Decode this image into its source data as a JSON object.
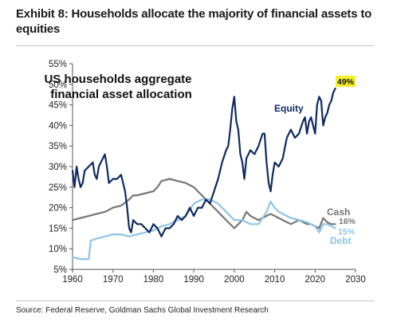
{
  "header": {
    "title_line1": "Exhibit 8: Households allocate the majority of financial assets to",
    "title_line2": "equities"
  },
  "source": "Source: Federal Reserve, Goldman Sachs Global Investment Research",
  "chart_data": {
    "type": "line",
    "title": "US households aggregate financial asset allocation",
    "title_line1": "US households aggregate",
    "title_line2": "financial asset allocation",
    "xlabel": "",
    "ylabel": "",
    "xlim": [
      1960,
      2030
    ],
    "ylim": [
      5,
      55
    ],
    "x_ticks": [
      "1960",
      "1970",
      "1980",
      "1990",
      "2000",
      "2010",
      "2020",
      "2030"
    ],
    "y_ticks": [
      "5%",
      "10%",
      "15%",
      "20%",
      "25%",
      "30%",
      "35%",
      "40%",
      "45%",
      "50%",
      "55%"
    ],
    "grid": false,
    "legend": "inline labels",
    "series": [
      {
        "name": "Equity",
        "color": "#0f2a5e",
        "end_label": "49%",
        "x": [
          1960,
          1960.5,
          1961,
          1961.5,
          1962,
          1962.5,
          1963,
          1964,
          1965,
          1965.5,
          1966,
          1966.5,
          1967,
          1968,
          1968.5,
          1969,
          1970,
          1971,
          1972,
          1972.5,
          1973,
          1973.5,
          1974,
          1974.5,
          1975,
          1976,
          1977,
          1978,
          1979,
          1980,
          1981,
          1982,
          1983,
          1984,
          1985,
          1986,
          1987,
          1988,
          1989,
          1990,
          1991,
          1992,
          1993,
          1994,
          1995,
          1996,
          1997,
          1998,
          1998.5,
          1999,
          1999.5,
          2000,
          2000.5,
          2001,
          2001.5,
          2002,
          2002.5,
          2003,
          2004,
          2005,
          2006,
          2007,
          2007.5,
          2008,
          2008.5,
          2009,
          2009.5,
          2010,
          2011,
          2012,
          2013,
          2014,
          2015,
          2016,
          2017,
          2017.5,
          2018,
          2018.5,
          2019,
          2020,
          2020.5,
          2021,
          2021.5,
          2022,
          2022.5,
          2023,
          2023.5,
          2024,
          2024.5,
          2025
        ],
        "values": [
          29,
          25,
          30,
          27,
          25,
          26,
          29,
          30,
          31,
          28,
          27,
          30,
          31,
          33,
          30,
          26,
          27,
          27,
          28,
          26,
          24,
          20,
          15,
          14,
          17,
          16,
          16,
          15,
          14,
          16,
          15,
          13,
          15,
          15,
          16,
          18,
          17,
          18,
          20,
          18,
          20,
          20,
          22,
          21,
          24,
          27,
          31,
          34,
          35,
          39,
          44,
          47,
          41,
          39,
          33,
          31,
          27,
          32,
          34,
          33,
          35,
          38,
          38,
          31,
          26,
          24,
          28,
          31,
          30,
          32,
          37,
          39,
          37,
          38,
          41,
          42,
          38,
          41,
          42,
          38,
          45,
          47,
          46,
          40,
          42,
          43,
          45,
          46,
          48,
          49
        ]
      },
      {
        "name": "Cash",
        "color": "#777777",
        "end_label": "16%",
        "x": [
          1960,
          1962,
          1964,
          1966,
          1968,
          1970,
          1972,
          1974,
          1975,
          1976,
          1978,
          1980,
          1981,
          1982,
          1984,
          1986,
          1988,
          1990,
          1991,
          1992,
          1994,
          1996,
          1998,
          2000,
          2002,
          2003,
          2004,
          2006,
          2008,
          2009,
          2010,
          2011,
          2012,
          2014,
          2016,
          2018,
          2019,
          2020,
          2021,
          2022,
          2023,
          2024,
          2025
        ],
        "values": [
          17,
          17.5,
          18,
          18.5,
          19,
          20,
          20.5,
          22,
          23,
          23,
          23.5,
          24,
          25,
          26.5,
          27,
          26.5,
          26,
          25,
          24,
          23,
          21,
          19,
          17,
          15,
          17,
          19,
          18,
          17,
          18,
          18.5,
          18,
          17.5,
          17,
          16,
          17,
          16,
          16,
          15.5,
          15,
          17.5,
          16.5,
          16,
          16
        ]
      },
      {
        "name": "Debt",
        "color": "#8ec3ea",
        "end_label": "15%",
        "x": [
          1960,
          1962,
          1964,
          1964.5,
          1966,
          1968,
          1970,
          1972,
          1974,
          1976,
          1978,
          1980,
          1982,
          1984,
          1986,
          1988,
          1990,
          1992,
          1994,
          1996,
          1998,
          2000,
          2002,
          2004,
          2006,
          2008,
          2009,
          2010,
          2011,
          2012,
          2014,
          2016,
          2018,
          2020,
          2021,
          2022,
          2023,
          2024,
          2025
        ],
        "values": [
          8,
          7.5,
          7.5,
          12,
          12.5,
          13,
          13.5,
          13.5,
          13,
          13.5,
          14,
          14.5,
          15.5,
          16,
          17,
          18,
          21,
          22,
          22,
          21,
          19,
          17,
          17,
          16,
          16,
          19,
          21.5,
          20,
          19,
          18.5,
          17.5,
          17,
          16.5,
          15.5,
          14,
          16,
          16,
          15.5,
          15
        ]
      }
    ],
    "labels": {
      "equity": "Equity",
      "cash": "Cash",
      "cash_end": "16%",
      "debt": "Debt",
      "debt_end": "15%",
      "equity_end": "49%"
    }
  }
}
